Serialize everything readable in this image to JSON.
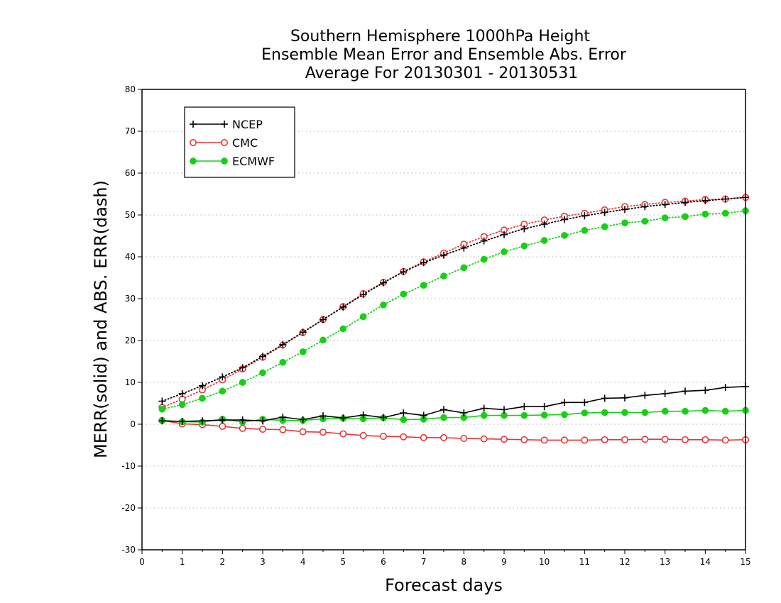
{
  "chart_data": {
    "type": "line",
    "title": [
      "Southern Hemisphere 1000hPa Height",
      "Ensemble Mean Error and Ensemble Abs. Error",
      "Average For 20130301 - 20130531"
    ],
    "xlabel": "Forecast days",
    "ylabel": "MERR(solid) and ABS. ERR(dash)",
    "xlim": [
      0,
      15
    ],
    "ylim": [
      -30,
      80
    ],
    "xticks": [
      0,
      1,
      2,
      3,
      4,
      5,
      6,
      7,
      8,
      9,
      10,
      11,
      12,
      13,
      14,
      15
    ],
    "yticks": [
      -30,
      -20,
      -10,
      0,
      10,
      20,
      30,
      40,
      50,
      60,
      70,
      80
    ],
    "grid": "horizontal-dotted",
    "legend_position": "top-left",
    "x": [
      0.5,
      1,
      1.5,
      2,
      2.5,
      3,
      3.5,
      4,
      4.5,
      5,
      5.5,
      6,
      6.5,
      7,
      7.5,
      8,
      8.5,
      9,
      9.5,
      10,
      10.5,
      11,
      11.5,
      12,
      12.5,
      13,
      13.5,
      14,
      14.5,
      15
    ],
    "series": [
      {
        "name": "NCEP",
        "color": "#000000",
        "marker": "plus",
        "merr": [
          0.8,
          0.7,
          0.8,
          1.0,
          1.0,
          0.8,
          1.7,
          1.1,
          2.0,
          1.5,
          2.2,
          1.6,
          2.7,
          2.1,
          3.5,
          2.7,
          3.8,
          3.5,
          4.2,
          4.2,
          5.2,
          5.2,
          6.2,
          6.3,
          6.9,
          7.3,
          7.9,
          8.1,
          8.8,
          9.0
        ],
        "abs_err": [
          5.5,
          7.3,
          9.2,
          11.3,
          13.5,
          16.2,
          19.0,
          22.0,
          25.0,
          28.0,
          31.0,
          33.8,
          36.4,
          38.6,
          40.4,
          42.1,
          43.8,
          45.3,
          46.7,
          47.8,
          48.9,
          49.8,
          50.6,
          51.3,
          52.0,
          52.5,
          53.0,
          53.4,
          53.8,
          54.2
        ]
      },
      {
        "name": "CMC",
        "color": "#e8353a",
        "marker": "circle-open",
        "merr": [
          0.9,
          0.1,
          -0.1,
          -0.5,
          -1.0,
          -1.2,
          -1.3,
          -1.8,
          -1.9,
          -2.3,
          -2.7,
          -2.9,
          -3.0,
          -3.2,
          -3.2,
          -3.4,
          -3.5,
          -3.6,
          -3.7,
          -3.8,
          -3.8,
          -3.8,
          -3.7,
          -3.7,
          -3.6,
          -3.6,
          -3.7,
          -3.7,
          -3.8,
          -3.7
        ],
        "abs_err": [
          4.0,
          6.0,
          8.2,
          10.6,
          13.2,
          16.0,
          18.9,
          21.9,
          25.0,
          28.1,
          31.2,
          33.9,
          36.5,
          38.8,
          40.9,
          43.0,
          44.8,
          46.4,
          47.8,
          48.8,
          49.7,
          50.4,
          51.2,
          52.0,
          52.5,
          53.0,
          53.3,
          53.7,
          53.8,
          54.2
        ]
      },
      {
        "name": "ECMWF",
        "color": "#16d016",
        "marker": "circle-filled",
        "merr": [
          0.9,
          0.6,
          0.5,
          1.2,
          0.5,
          1.2,
          0.9,
          0.9,
          1.3,
          1.4,
          1.3,
          1.5,
          1.1,
          1.2,
          1.6,
          1.6,
          2.1,
          2.1,
          2.1,
          2.2,
          2.3,
          2.7,
          2.8,
          2.8,
          2.8,
          3.1,
          3.1,
          3.3,
          3.1,
          3.3
        ],
        "abs_err": [
          3.6,
          4.7,
          6.2,
          7.9,
          10.0,
          12.3,
          14.8,
          17.3,
          20.1,
          22.8,
          25.7,
          28.5,
          31.1,
          33.2,
          35.4,
          37.4,
          39.4,
          41.2,
          42.6,
          43.9,
          45.1,
          46.3,
          47.2,
          48.1,
          48.5,
          49.3,
          49.6,
          50.2,
          50.4,
          51.0
        ]
      }
    ]
  }
}
